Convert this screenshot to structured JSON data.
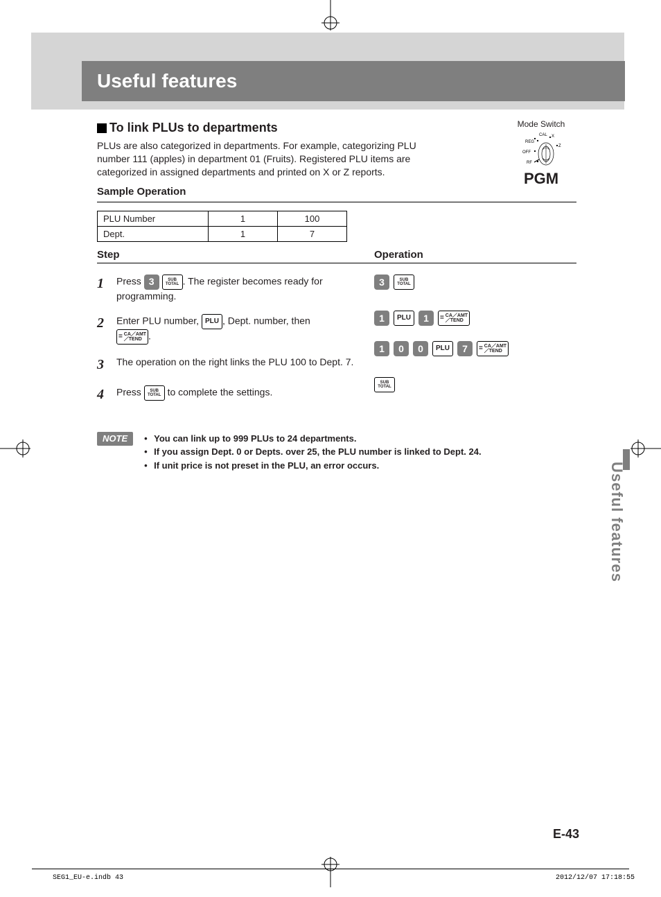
{
  "title_band": "Useful features",
  "section_heading": "To link PLUs to departments",
  "intro": "PLUs are also categorized in departments. For example, categorizing PLU number 111 (apples) in department 01 (Fruits). Registered PLU items are categorized in assigned departments and printed on X or Z reports.",
  "sample_heading": "Sample Operation",
  "table": {
    "rows": [
      {
        "label": "PLU Number",
        "v1": "1",
        "v2": "100"
      },
      {
        "label": "Dept.",
        "v1": "1",
        "v2": "7"
      }
    ]
  },
  "col_step_h": "Step",
  "col_op_h": "Operation",
  "steps": [
    {
      "n": "1",
      "pre": "Press ",
      "post": ". The register becomes ready for programming."
    },
    {
      "n": "2",
      "pre": "Enter PLU number, ",
      "mid": ", Dept. number, then ",
      "post": "."
    },
    {
      "n": "3",
      "text": "The operation on the right links the PLU 100 to Dept. 7."
    },
    {
      "n": "4",
      "pre": "Press ",
      "post": " to complete the settings."
    }
  ],
  "keys": {
    "sub_top": "SUB",
    "sub_bot": "TOTAL",
    "plu": "PLU",
    "ca_eq": "=",
    "ca_top": "CA／AMT",
    "ca_bot": "／TEND"
  },
  "op_rows": [
    [
      {
        "t": "num",
        "v": "3"
      },
      {
        "t": "sub"
      }
    ],
    [
      {
        "t": "num",
        "v": "1"
      },
      {
        "t": "plu"
      },
      {
        "t": "num",
        "v": "1"
      },
      {
        "t": "ca"
      }
    ],
    [
      {
        "t": "num",
        "v": "1"
      },
      {
        "t": "num",
        "v": "0"
      },
      {
        "t": "num",
        "v": "0"
      },
      {
        "t": "plu"
      },
      {
        "t": "num",
        "v": "7"
      },
      {
        "t": "ca"
      }
    ],
    [
      {
        "t": "sub"
      }
    ]
  ],
  "mode_switch": {
    "label": "Mode Switch",
    "positions": {
      "cal": "CAL",
      "x": "X",
      "reg": "REG",
      "z": "Z",
      "off": "OFF",
      "rf": "RF"
    },
    "pgm": "PGM"
  },
  "note_label": "NOTE",
  "notes": [
    "You can link up to 999 PLUs to 24 departments.",
    "If you assign Dept. 0 or Depts. over 25, the PLU number is linked to Dept. 24.",
    "If unit price is not preset in the PLU, an error occurs."
  ],
  "side_tab": "Useful features",
  "page_num": "E-43",
  "footer_left": "SEG1_EU-e.indb   43",
  "footer_right": "2012/12/07   17:18:55",
  "colors": {
    "gray_band": "#d5d5d5",
    "dark_gray": "#7f7f7f",
    "text": "#231f20"
  }
}
